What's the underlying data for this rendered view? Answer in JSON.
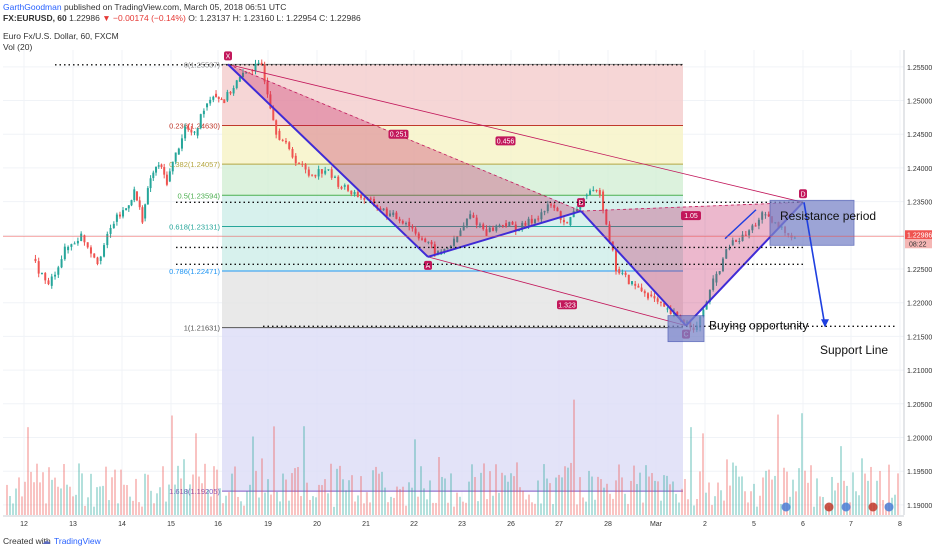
{
  "header": {
    "author": "GarthGoodman",
    "published": "published on TradingView.com, March 05, 2018 06:51 UTC",
    "symbol": "FX:EURUSD, 60",
    "last": "1.22986",
    "change": "▼ −0.00174 (−0.14%)",
    "ohlc": "O: 1.23137  H: 1.23160  L: 1.22954  C: 1.22986",
    "instrument": "Euro Fx/U.S. Dollar, 60, FXCM",
    "volume_label": "Vol (20)"
  },
  "footer": {
    "created_with": "Created with",
    "brand": "TradingView"
  },
  "colors": {
    "bull": "#26a69a",
    "bear": "#ef5350",
    "pattern_fill": "#c2185b",
    "pattern_line": "#3f2bd6",
    "fib_red": "#f4cccc",
    "fib_yellow": "#f6f2c4",
    "fib_green": "#d3efd5",
    "fib_teal": "#cdeee9",
    "fib_grey": "#e4e4e4",
    "fib_lavender": "#dcdcf6",
    "box": "#7b86c9"
  },
  "chart_data": {
    "type": "candlestick",
    "symbol": "EURUSD",
    "interval": "60",
    "ylim": [
      1.1885,
      1.2575
    ],
    "x_ticks": [
      "12",
      "13",
      "14",
      "15",
      "16",
      "19",
      "20",
      "21",
      "22",
      "23",
      "26",
      "27",
      "28",
      "Mar",
      "2",
      "5",
      "6",
      "7",
      "8"
    ],
    "y_ticks": [
      "1.25500",
      "1.25000",
      "1.24500",
      "1.24000",
      "1.23500",
      "1.23000",
      "1.22500",
      "1.22000",
      "1.21500",
      "1.21000",
      "1.20500",
      "1.20000",
      "1.19500",
      "1.19000"
    ],
    "last_price_label": "1.22986",
    "countdown_label": "08:22",
    "price_path": [
      [
        "12",
        1.2265
      ],
      [
        "12",
        1.2225
      ],
      [
        "12",
        1.2278
      ],
      [
        "13",
        1.23
      ],
      [
        "13",
        1.2262
      ],
      [
        "13",
        1.232
      ],
      [
        "14",
        1.234
      ],
      [
        "14",
        1.2365
      ],
      [
        "14",
        1.2325
      ],
      [
        "14",
        1.2385
      ],
      [
        "14",
        1.2405
      ],
      [
        "14",
        1.238
      ],
      [
        "15",
        1.242
      ],
      [
        "15",
        1.246
      ],
      [
        "15",
        1.2448
      ],
      [
        "15",
        1.249
      ],
      [
        "15",
        1.251
      ],
      [
        "16",
        1.25
      ],
      [
        "16",
        1.2528
      ],
      [
        "16",
        1.2545
      ],
      [
        "16",
        1.2553
      ],
      [
        "19",
        1.2455
      ],
      [
        "19",
        1.2418
      ],
      [
        "19",
        1.239
      ],
      [
        "20",
        1.2398
      ],
      [
        "20",
        1.2372
      ],
      [
        "20",
        1.236
      ],
      [
        "21",
        1.2345
      ],
      [
        "21",
        1.233
      ],
      [
        "21",
        1.232
      ],
      [
        "22",
        1.2295
      ],
      [
        "22",
        1.2272
      ],
      [
        "22",
        1.229
      ],
      [
        "23",
        1.233
      ],
      [
        "23",
        1.2305
      ],
      [
        "23",
        1.2318
      ],
      [
        "26",
        1.231
      ],
      [
        "26",
        1.2325
      ],
      [
        "26",
        1.2345
      ],
      [
        "27",
        1.2315
      ],
      [
        "27",
        1.2358
      ],
      [
        "27",
        1.2365
      ],
      [
        "28",
        1.225
      ],
      [
        "28",
        1.2228
      ],
      [
        "28",
        1.2212
      ],
      [
        "Mar",
        1.219
      ],
      [
        "Mar",
        1.2175
      ],
      [
        "Mar",
        1.2163
      ],
      [
        "2",
        1.223
      ],
      [
        "2",
        1.2285
      ],
      [
        "2",
        1.23
      ],
      [
        "5",
        1.233
      ],
      [
        "5",
        1.2312
      ],
      [
        "5",
        1.2298
      ]
    ],
    "volume_hint": "Vol (20)",
    "fibonacci_levels": [
      {
        "label": "0(1.25537)",
        "value": 1.25537
      },
      {
        "label": "0.236(1.24630)",
        "value": 1.2463
      },
      {
        "label": "0.382(1.24057)",
        "value": 1.24057
      },
      {
        "label": "0.5(1.23594)",
        "value": 1.23594
      },
      {
        "label": "0.618(1.23131)",
        "value": 1.23131
      },
      {
        "label": "0.786(1.22471)",
        "value": 1.22471
      },
      {
        "label": "1(1.21631)",
        "value": 1.21631
      },
      {
        "label": "1.618(1.19205)",
        "value": 1.19205
      }
    ],
    "harmonic_pattern": {
      "points": [
        {
          "label": "X",
          "x": "16",
          "value": 1.25537
        },
        {
          "label": "A",
          "x": "22",
          "value": 1.2268
        },
        {
          "label": "B",
          "x": "27",
          "value": 1.2336
        },
        {
          "label": "C",
          "x": "Mar",
          "value": 1.2166
        },
        {
          "label": "D",
          "x": "6",
          "value": 1.2349
        }
      ],
      "ratios": [
        "0.251",
        "0.456",
        "1.323",
        "1.05"
      ]
    },
    "annotations": [
      {
        "text": "Resistance period"
      },
      {
        "text": "Buying opportunity"
      },
      {
        "text": "Support Line"
      }
    ],
    "horizontal_dotted_levels": [
      1.2553,
      1.2349,
      1.2282,
      1.2257,
      1.2165
    ]
  }
}
